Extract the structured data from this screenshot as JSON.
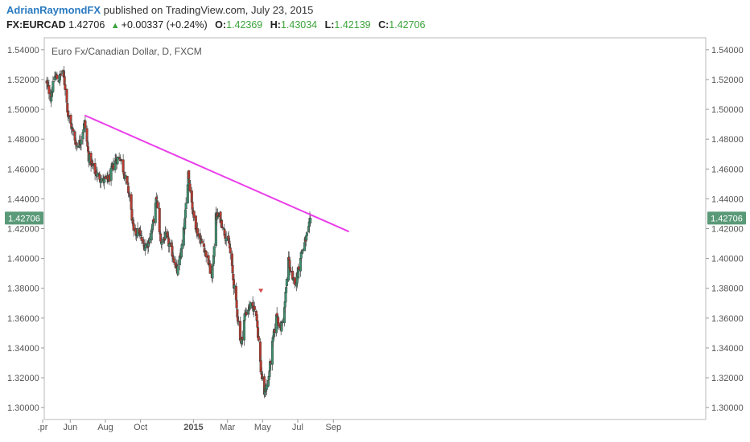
{
  "header": {
    "author": "AdrianRaymondFX",
    "published": "published on TradingView.com, July 23, 2015",
    "symbol": "FX:EURCAD",
    "last": "1.42706",
    "change": "+0.00337 (+0.24%)",
    "open_label": "O:",
    "open": "1.42369",
    "high_label": "H:",
    "high": "1.43034",
    "low_label": "L:",
    "low": "1.42139",
    "close_label": "C:",
    "close": "1.42706"
  },
  "colors": {
    "up": "#3f8f6e",
    "down": "#b83a2e",
    "trendline": "#ea3eea",
    "price_badge": "#5a9a78",
    "author": "#2a7ac0",
    "values": "#3aa33a"
  },
  "chart_data": {
    "type": "candlestick",
    "title": "Euro Fx/Canadian Dollar, D, FXCM",
    "x_tick_labels": [
      ".pr",
      "Jun",
      "Aug",
      "Oct",
      "2015",
      "Mar",
      "May",
      "Jul",
      "Sep"
    ],
    "ylim": [
      1.292,
      1.548
    ],
    "y_ticks": [
      "1.54000",
      "1.52000",
      "1.50000",
      "1.48000",
      "1.46000",
      "1.44000",
      "1.42000",
      "1.40000",
      "1.38000",
      "1.36000",
      "1.34000",
      "1.32000",
      "1.30000"
    ],
    "axes_both_sides": true,
    "grid": false,
    "current_price": "1.42706",
    "price_path": [
      [
        "2014-04-21",
        1.518
      ],
      [
        "2014-04-28",
        1.508
      ],
      [
        "2014-05-05",
        1.522
      ],
      [
        "2014-05-12",
        1.52
      ],
      [
        "2014-05-19",
        1.526
      ],
      [
        "2014-05-23",
        1.515
      ],
      [
        "2014-05-28",
        1.497
      ],
      [
        "2014-06-04",
        1.487
      ],
      [
        "2014-06-12",
        1.476
      ],
      [
        "2014-06-18",
        1.478
      ],
      [
        "2014-06-26",
        1.491
      ],
      [
        "2014-07-03",
        1.468
      ],
      [
        "2014-07-14",
        1.458
      ],
      [
        "2014-07-28",
        1.452
      ],
      [
        "2014-08-07",
        1.453
      ],
      [
        "2014-08-18",
        1.466
      ],
      [
        "2014-08-27",
        1.468
      ],
      [
        "2014-09-04",
        1.455
      ],
      [
        "2014-09-12",
        1.442
      ],
      [
        "2014-09-19",
        1.417
      ],
      [
        "2014-09-29",
        1.418
      ],
      [
        "2014-10-06",
        1.408
      ],
      [
        "2014-10-14",
        1.41
      ],
      [
        "2014-10-22",
        1.421
      ],
      [
        "2014-10-29",
        1.441
      ],
      [
        "2014-11-05",
        1.411
      ],
      [
        "2014-11-14",
        1.415
      ],
      [
        "2014-11-25",
        1.404
      ],
      [
        "2014-12-04",
        1.391
      ],
      [
        "2014-12-11",
        1.405
      ],
      [
        "2014-12-17",
        1.425
      ],
      [
        "2014-12-23",
        1.458
      ],
      [
        "2014-12-31",
        1.431
      ],
      [
        "2015-01-08",
        1.417
      ],
      [
        "2015-01-20",
        1.407
      ],
      [
        "2015-01-28",
        1.396
      ],
      [
        "2015-02-02",
        1.386
      ],
      [
        "2015-02-09",
        1.428
      ],
      [
        "2015-02-16",
        1.428
      ],
      [
        "2015-02-25",
        1.416
      ],
      [
        "2015-03-04",
        1.41
      ],
      [
        "2015-03-11",
        1.386
      ],
      [
        "2015-03-18",
        1.363
      ],
      [
        "2015-03-25",
        1.342
      ],
      [
        "2015-03-31",
        1.362
      ],
      [
        "2015-04-09",
        1.368
      ],
      [
        "2015-04-15",
        1.367
      ],
      [
        "2015-04-20",
        1.364
      ],
      [
        "2015-04-28",
        1.325
      ],
      [
        "2015-05-04",
        1.31
      ],
      [
        "2015-05-11",
        1.318
      ],
      [
        "2015-05-18",
        1.342
      ],
      [
        "2015-05-26",
        1.363
      ],
      [
        "2015-06-01",
        1.351
      ],
      [
        "2015-06-08",
        1.366
      ],
      [
        "2015-06-15",
        1.4
      ],
      [
        "2015-06-22",
        1.384
      ],
      [
        "2015-06-29",
        1.386
      ],
      [
        "2015-07-06",
        1.402
      ],
      [
        "2015-07-13",
        1.41
      ],
      [
        "2015-07-20",
        1.419
      ],
      [
        "2015-07-23",
        1.427
      ]
    ],
    "trendline": {
      "start": [
        "2014-06-26",
        1.496
      ],
      "end": [
        "2015-09-28",
        1.418
      ]
    },
    "markers": [
      {
        "date": "2015-04-28",
        "price": 1.378,
        "shape": "down-triangle"
      }
    ]
  }
}
